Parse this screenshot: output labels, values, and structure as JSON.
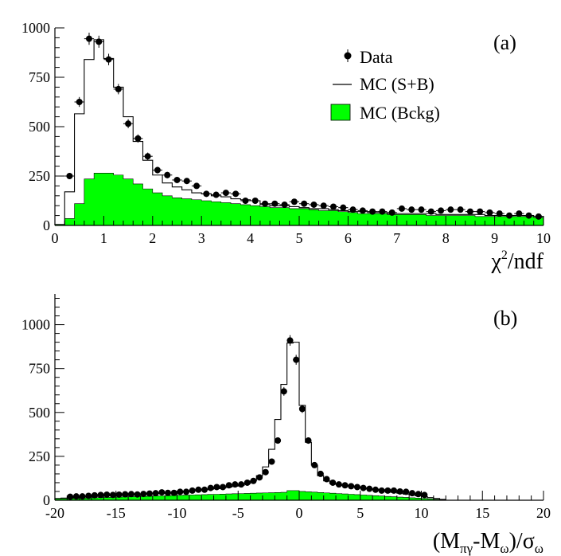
{
  "colors": {
    "background": "#ffffff",
    "bckg_fill": "#00ff00",
    "line": "#000000",
    "marker": "#000000"
  },
  "chart_data": [
    {
      "type": "histogram",
      "panel_label": "(a)",
      "xlabel": "χ²/ndf",
      "xlim": [
        0,
        10
      ],
      "ylim": [
        0,
        1000
      ],
      "x_ticks": [
        0,
        1,
        2,
        3,
        4,
        5,
        6,
        7,
        8,
        9,
        10
      ],
      "y_ticks": [
        0,
        250,
        500,
        750,
        1000
      ],
      "legend": {
        "placement": "top-right",
        "entries": [
          {
            "key": "data",
            "label": "Data",
            "style": "marker"
          },
          {
            "key": "mc_sb",
            "label": "MC (S+B)",
            "style": "line"
          },
          {
            "key": "mc_bckg",
            "label": "MC (Bckg)",
            "style": "filled"
          }
        ]
      },
      "bin_edges": [
        0,
        0.2,
        0.4,
        0.6,
        0.8,
        1.0,
        1.2,
        1.4,
        1.6,
        1.8,
        2.0,
        2.2,
        2.4,
        2.6,
        2.8,
        3.0,
        3.2,
        3.4,
        3.6,
        3.8,
        4.0,
        4.2,
        4.4,
        4.6,
        4.8,
        5.0,
        5.2,
        5.4,
        5.6,
        5.8,
        6.0,
        6.2,
        6.4,
        6.6,
        6.8,
        7.0,
        7.2,
        7.4,
        7.6,
        7.8,
        8.0,
        8.2,
        8.4,
        8.6,
        8.8,
        9.0,
        9.2,
        9.4,
        9.6,
        9.8,
        10.0
      ],
      "series": [
        {
          "name": "MC (S+B)",
          "style": "line",
          "values": [
            5,
            170,
            565,
            840,
            940,
            845,
            700,
            550,
            425,
            330,
            255,
            215,
            195,
            180,
            165,
            160,
            150,
            145,
            135,
            130,
            125,
            105,
            100,
            100,
            95,
            90,
            85,
            85,
            80,
            75,
            70,
            70,
            65,
            65,
            60,
            60,
            60,
            60,
            60,
            55,
            55,
            55,
            55,
            55,
            50,
            50,
            50,
            50,
            50,
            45
          ]
        },
        {
          "name": "MC (Bckg)",
          "style": "filled",
          "values": [
            5,
            35,
            110,
            235,
            265,
            265,
            255,
            235,
            210,
            185,
            165,
            150,
            140,
            135,
            130,
            125,
            120,
            115,
            110,
            105,
            100,
            95,
            90,
            90,
            85,
            85,
            80,
            75,
            75,
            70,
            65,
            60,
            60,
            60,
            55,
            55,
            55,
            55,
            50,
            50,
            50,
            50,
            50,
            45,
            45,
            45,
            45,
            45,
            45,
            40
          ]
        },
        {
          "name": "Data",
          "style": "marker",
          "x": [
            0.3,
            0.5,
            0.7,
            0.9,
            1.1,
            1.3,
            1.5,
            1.7,
            1.9,
            2.1,
            2.3,
            2.5,
            2.7,
            2.9,
            3.1,
            3.3,
            3.5,
            3.7,
            3.9,
            4.1,
            4.3,
            4.5,
            4.7,
            4.9,
            5.1,
            5.3,
            5.5,
            5.7,
            5.9,
            6.1,
            6.3,
            6.5,
            6.7,
            6.9,
            7.1,
            7.3,
            7.5,
            7.7,
            7.9,
            8.1,
            8.3,
            8.5,
            8.7,
            8.9,
            9.1,
            9.3,
            9.5,
            9.7,
            9.9
          ],
          "values": [
            250,
            625,
            945,
            930,
            840,
            690,
            515,
            440,
            350,
            280,
            255,
            230,
            225,
            200,
            160,
            155,
            165,
            160,
            125,
            125,
            110,
            110,
            105,
            120,
            110,
            105,
            100,
            95,
            90,
            80,
            75,
            70,
            70,
            65,
            85,
            80,
            80,
            70,
            75,
            80,
            80,
            70,
            70,
            65,
            60,
            50,
            60,
            50,
            45
          ]
        }
      ]
    },
    {
      "type": "histogram",
      "panel_label": "(b)",
      "xlabel": "(Mπγ-Mω)/σω",
      "xlabel_parts": {
        "p1": "(M",
        "s1": "πγ",
        "p2": "-M",
        "s2": "ω",
        "p3": ")/σ",
        "s3": "ω"
      },
      "xlim": [
        -20,
        20
      ],
      "ylim": [
        0,
        1175
      ],
      "x_ticks": [
        -20,
        -15,
        -10,
        -5,
        0,
        5,
        10,
        15,
        20
      ],
      "y_ticks": [
        0,
        250,
        500,
        750,
        1000
      ],
      "bin_edges": [
        -20,
        -19.5,
        -19,
        -18.5,
        -18,
        -17.5,
        -17,
        -16.5,
        -16,
        -15.5,
        -15,
        -14.5,
        -14,
        -13.5,
        -13,
        -12.5,
        -12,
        -11.5,
        -11,
        -10.5,
        -10,
        -9.5,
        -9,
        -8.5,
        -8,
        -7.5,
        -7,
        -6.5,
        -6,
        -5.5,
        -5,
        -4.5,
        -4,
        -3.5,
        -3,
        -2.5,
        -2,
        -1.5,
        -1,
        -0.5,
        0,
        0.5,
        1,
        1.5,
        2,
        2.5,
        3,
        3.5,
        4,
        4.5,
        5,
        5.5,
        6,
        6.5,
        7,
        7.5,
        8,
        8.5,
        9,
        9.5,
        10,
        10.5,
        11,
        11.5,
        12
      ],
      "series": [
        {
          "name": "MC (S+B)",
          "style": "line",
          "values": [
            10,
            12,
            14,
            16,
            18,
            20,
            22,
            24,
            25,
            26,
            27,
            28,
            30,
            32,
            34,
            36,
            38,
            40,
            42,
            45,
            48,
            52,
            55,
            58,
            60,
            63,
            66,
            70,
            75,
            80,
            85,
            95,
            110,
            140,
            190,
            290,
            460,
            660,
            895,
            900,
            540,
            330,
            200,
            140,
            110,
            95,
            90,
            85,
            80,
            75,
            70,
            65,
            60,
            55,
            50,
            45,
            40,
            35,
            30,
            25,
            20,
            15,
            10,
            5
          ]
        },
        {
          "name": "MC (Bckg)",
          "style": "filled",
          "values": [
            8,
            9,
            10,
            11,
            12,
            13,
            14,
            15,
            16,
            17,
            18,
            19,
            20,
            21,
            22,
            23,
            24,
            25,
            26,
            27,
            28,
            29,
            30,
            31,
            32,
            33,
            34,
            35,
            36,
            37,
            38,
            39,
            40,
            41,
            42,
            43,
            44,
            45,
            55,
            55,
            50,
            48,
            46,
            44,
            42,
            40,
            38,
            36,
            34,
            32,
            30,
            28,
            26,
            24,
            22,
            20,
            18,
            16,
            14,
            12,
            10,
            8,
            5,
            3
          ]
        },
        {
          "name": "Data",
          "style": "marker",
          "x": [
            -18.75,
            -18.25,
            -17.75,
            -17.25,
            -16.75,
            -16.25,
            -15.75,
            -15.25,
            -14.75,
            -14.25,
            -13.75,
            -13.25,
            -12.75,
            -12.25,
            -11.75,
            -11.25,
            -10.75,
            -10.25,
            -9.75,
            -9.25,
            -8.75,
            -8.25,
            -7.75,
            -7.25,
            -6.75,
            -6.25,
            -5.75,
            -5.25,
            -4.75,
            -4.25,
            -3.75,
            -3.25,
            -2.75,
            -2.25,
            -1.75,
            -1.25,
            -0.75,
            -0.25,
            0.25,
            0.75,
            1.25,
            1.75,
            2.25,
            2.75,
            3.25,
            3.75,
            4.25,
            4.75,
            5.25,
            5.75,
            6.25,
            6.75,
            7.25,
            7.75,
            8.25,
            8.75,
            9.25,
            9.75,
            10.25
          ],
          "values": [
            20,
            22,
            22,
            25,
            28,
            30,
            32,
            30,
            32,
            34,
            35,
            33,
            36,
            38,
            40,
            45,
            42,
            42,
            48,
            48,
            55,
            60,
            60,
            70,
            75,
            75,
            85,
            90,
            90,
            100,
            110,
            130,
            160,
            220,
            340,
            620,
            910,
            800,
            520,
            340,
            200,
            150,
            120,
            100,
            90,
            85,
            80,
            75,
            70,
            65,
            60,
            55,
            55,
            55,
            50,
            48,
            40,
            35,
            30
          ]
        }
      ]
    }
  ]
}
